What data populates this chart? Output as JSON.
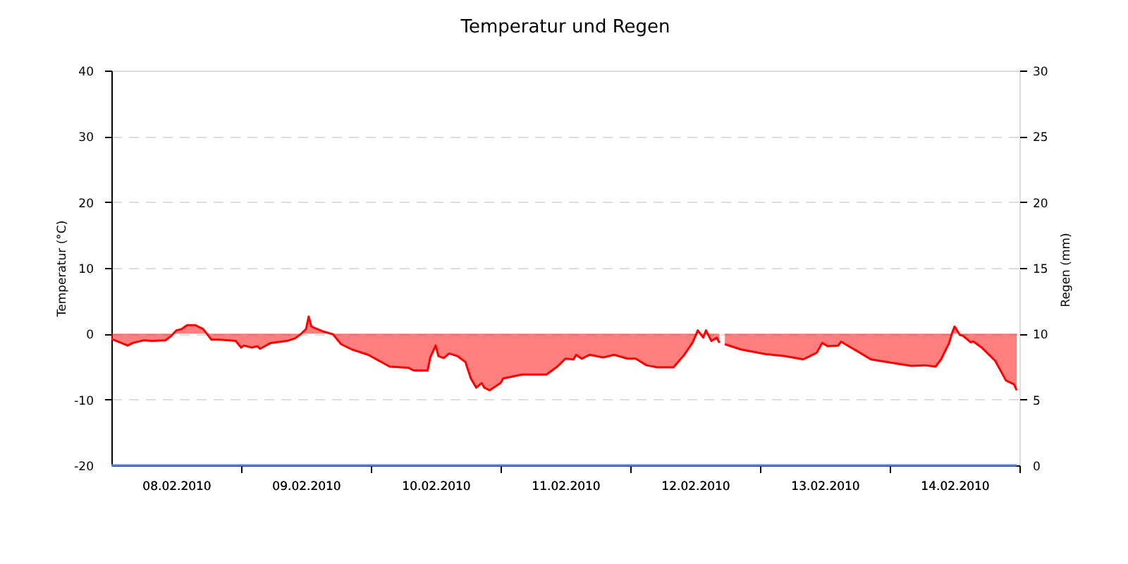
{
  "chart_data": {
    "type": "area",
    "title": "Temperatur und Regen",
    "ylabel": "Temperatur (°C)",
    "y2label": "Regen (mm)",
    "xlim": [
      "2010-02-08T00:00",
      "2010-02-15T00:00"
    ],
    "xticks": [
      {
        "value": "2010-02-08T12:00",
        "label": "08.02.2010"
      },
      {
        "value": "2010-02-09T00:00",
        "label": null
      },
      {
        "value": "2010-02-09T12:00",
        "label": "09.02.2010"
      },
      {
        "value": "2010-02-10T00:00",
        "label": null
      },
      {
        "value": "2010-02-10T12:00",
        "label": "10.02.2010"
      },
      {
        "value": "2010-02-11T00:00",
        "label": null
      },
      {
        "value": "2010-02-11T12:00",
        "label": "11.02.2010"
      },
      {
        "value": "2010-02-12T00:00",
        "label": null
      },
      {
        "value": "2010-02-12T12:00",
        "label": "12.02.2010"
      },
      {
        "value": "2010-02-13T00:00",
        "label": null
      },
      {
        "value": "2010-02-13T12:00",
        "label": "13.02.2010"
      },
      {
        "value": "2010-02-14T00:00",
        "label": null
      },
      {
        "value": "2010-02-14T12:00",
        "label": "14.02.2010"
      },
      {
        "value": "2010-02-15T00:00",
        "label": null
      }
    ],
    "ylim": [
      -20,
      40
    ],
    "yticks": [
      -20,
      -10,
      0,
      10,
      20,
      30,
      40
    ],
    "y2lim": [
      0,
      30
    ],
    "y2ticks": [
      0,
      5,
      10,
      15,
      20,
      25,
      30
    ],
    "grid": "y",
    "series": [
      {
        "color": "#ff0000",
        "x": [
          "2010-02-08T00:00",
          "2010-02-08T01:30",
          "2010-02-08T03:00",
          "2010-02-08T04:00",
          "2010-02-08T06:00",
          "2010-02-08T07:30",
          "2010-02-08T10:00",
          "2010-02-08T11:00",
          "2010-02-08T12:00",
          "2010-02-08T13:00",
          "2010-02-08T14:00",
          "2010-02-08T15:30",
          "2010-02-08T17:00",
          "2010-02-08T18:30",
          "2010-02-08T20:00",
          "2010-02-08T23:00",
          "2010-02-09T00:00",
          "2010-02-09T00:30",
          "2010-02-09T02:00",
          "2010-02-09T03:00",
          "2010-02-09T03:30",
          "2010-02-09T05:30",
          "2010-02-09T08:30",
          "2010-02-09T10:00",
          "2010-02-09T11:00",
          "2010-02-09T12:00",
          "2010-02-09T12:30",
          "2010-02-09T13:00",
          "2010-02-09T13:30",
          "2010-02-09T15:00",
          "2010-02-09T17:00",
          "2010-02-09T18:30",
          "2010-02-09T20:30",
          "2010-02-09T23:30",
          "2010-02-10T01:30",
          "2010-02-10T03:30",
          "2010-02-10T07:00",
          "2010-02-10T08:00",
          "2010-02-10T10:30",
          "2010-02-10T11:00",
          "2010-02-10T12:00",
          "2010-02-10T12:30",
          "2010-02-10T13:30",
          "2010-02-10T14:30",
          "2010-02-10T16:00",
          "2010-02-10T17:30",
          "2010-02-10T18:30",
          "2010-02-10T19:30",
          "2010-02-10T20:30",
          "2010-02-10T21:00",
          "2010-02-10T22:00",
          "2010-02-11T00:00",
          "2010-02-11T00:30",
          "2010-02-11T04:00",
          "2010-02-11T08:30",
          "2010-02-11T10:30",
          "2010-02-11T12:00",
          "2010-02-11T13:30",
          "2010-02-11T14:00",
          "2010-02-11T15:00",
          "2010-02-11T16:30",
          "2010-02-11T19:00",
          "2010-02-11T21:00",
          "2010-02-11T23:30",
          "2010-02-12T01:00",
          "2010-02-12T03:00",
          "2010-02-12T05:00",
          "2010-02-12T08:00",
          "2010-02-12T10:00",
          "2010-02-12T11:30",
          "2010-02-12T12:30",
          "2010-02-12T13:30",
          "2010-02-12T14:00",
          "2010-02-12T15:00",
          "2010-02-12T16:00",
          "2010-02-12T16:30",
          "2010-02-12T17:00",
          "2010-02-12T17:30",
          "2010-02-12T20:30",
          "2010-02-13T01:00",
          "2010-02-13T04:30",
          "2010-02-13T06:00",
          "2010-02-13T08:00",
          "2010-02-13T10:30",
          "2010-02-13T11:30",
          "2010-02-13T12:30",
          "2010-02-13T14:30",
          "2010-02-13T15:00",
          "2010-02-13T16:00",
          "2010-02-13T18:30",
          "2010-02-13T20:30",
          "2010-02-13T23:30",
          "2010-02-14T04:00",
          "2010-02-14T06:30",
          "2010-02-14T08:30",
          "2010-02-14T09:30",
          "2010-02-14T11:00",
          "2010-02-14T11:30",
          "2010-02-14T12:00",
          "2010-02-14T13:00",
          "2010-02-14T13:30",
          "2010-02-14T15:00",
          "2010-02-14T15:30",
          "2010-02-14T17:00",
          "2010-02-14T19:30",
          "2010-02-14T21:30",
          "2010-02-14T22:30",
          "2010-02-14T23:00",
          "2010-02-14T23:30"
        ],
        "values": [
          -0.8,
          -1.3,
          -1.8,
          -1.4,
          -1.0,
          -1.1,
          -1.0,
          -0.4,
          0.5,
          0.7,
          1.3,
          1.3,
          0.7,
          -0.9,
          -0.9,
          -1.1,
          -2.1,
          -1.8,
          -2.1,
          -1.9,
          -2.3,
          -1.4,
          -1.1,
          -0.7,
          -0.1,
          0.7,
          2.6,
          1.1,
          0.9,
          0.4,
          -0.1,
          -1.6,
          -2.4,
          -3.2,
          -4.1,
          -5.0,
          -5.2,
          -5.6,
          -5.6,
          -3.6,
          -1.8,
          -3.4,
          -3.7,
          -3.0,
          -3.4,
          -4.3,
          -6.8,
          -8.2,
          -7.5,
          -8.2,
          -8.6,
          -7.5,
          -6.8,
          -6.2,
          -6.2,
          -5.0,
          -3.8,
          -3.9,
          -3.2,
          -3.8,
          -3.2,
          -3.6,
          -3.2,
          -3.8,
          -3.8,
          -4.8,
          -5.1,
          -5.1,
          -3.2,
          -1.4,
          0.5,
          -0.6,
          0.5,
          -1.1,
          -0.6,
          -1.4,
          null,
          -1.6,
          -2.4,
          -3.1,
          -3.4,
          -3.6,
          -3.9,
          -2.9,
          -1.4,
          -1.9,
          -1.8,
          -1.2,
          -1.7,
          -2.9,
          -3.9,
          -4.3,
          -4.9,
          -4.8,
          -5.0,
          -3.9,
          -1.4,
          0.0,
          1.1,
          -0.2,
          -0.3,
          -1.3,
          -1.2,
          -2.1,
          -4.1,
          -7.1,
          -7.5,
          -7.7,
          -8.6
        ]
      },
      {
        "type": "line",
        "axis": "y2",
        "color": "#5b80e5",
        "x": [
          "2010-02-08T00:00",
          "2010-02-09T00:00",
          "2010-02-10T00:00",
          "2010-02-11T00:00",
          "2010-02-12T00:00",
          "2010-02-13T00:00",
          "2010-02-14T00:00",
          "2010-02-14T23:30"
        ],
        "values": [
          0,
          0,
          0,
          0,
          0,
          0,
          0,
          0
        ]
      }
    ]
  }
}
